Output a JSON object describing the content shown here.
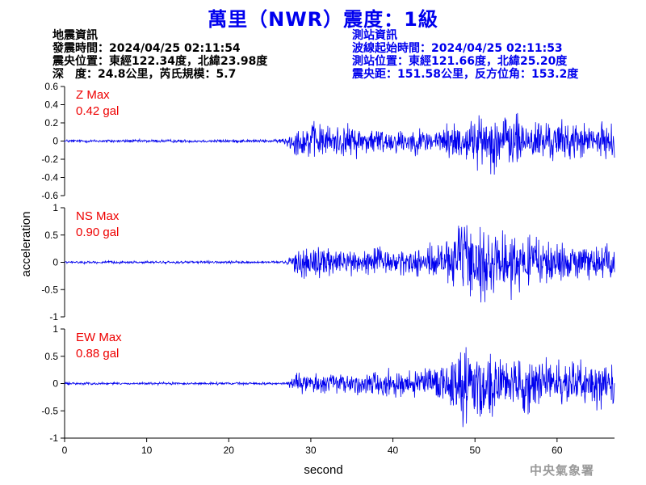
{
  "header": {
    "title": "萬里（NWR）震度：1級"
  },
  "quake_info": {
    "heading": "地震資訊",
    "origin_time": "發震時間：2024/04/25 02:11:54",
    "epicenter": "震央位置：東經122.34度，北緯23.98度",
    "depth_magnitude": "深　度：24.8公里，芮氏規模：5.7"
  },
  "station_info": {
    "heading": "測站資訊",
    "wave_start": "波線起始時間：2024/04/25 02:11:53",
    "location": "測站位置：東經121.66度，北緯25.20度",
    "distance_azimuth": "震央距：151.58公里，反方位角：153.2度"
  },
  "footer": {
    "agency": "中央氣象署"
  },
  "colors": {
    "trace": "#0000ee",
    "max_label": "#ee0000",
    "title": "#0000ee"
  },
  "chart_data": {
    "type": "line",
    "xlabel": "second",
    "ylabel": "acceleration",
    "xlim": [
      0,
      67
    ],
    "xticks": [
      "0",
      "10",
      "20",
      "30",
      "40",
      "50",
      "60"
    ],
    "series": [
      {
        "name": "Z",
        "max_label": "Z Max",
        "max_value": "0.42 gal",
        "ylim": [
          -0.6,
          0.6
        ],
        "yticks": [
          "0.6",
          "0.4",
          "0.2",
          "0",
          "-0.2",
          "-0.4",
          "-0.6"
        ],
        "envelope": [
          [
            0,
            0.015
          ],
          [
            26,
            0.015
          ],
          [
            27,
            0.05
          ],
          [
            28,
            0.12
          ],
          [
            30,
            0.18
          ],
          [
            32,
            0.16
          ],
          [
            35,
            0.15
          ],
          [
            40,
            0.12
          ],
          [
            45,
            0.12
          ],
          [
            48,
            0.2
          ],
          [
            50,
            0.22
          ],
          [
            53,
            0.3
          ],
          [
            55,
            0.25
          ],
          [
            58,
            0.2
          ],
          [
            62,
            0.18
          ],
          [
            67,
            0.15
          ]
        ]
      },
      {
        "name": "NS",
        "max_label": "NS Max",
        "max_value": "0.90 gal",
        "ylim": [
          -1,
          1
        ],
        "yticks": [
          "1",
          "0.5",
          "0",
          "-0.5",
          "-1"
        ],
        "envelope": [
          [
            0,
            0.02
          ],
          [
            27,
            0.02
          ],
          [
            28,
            0.2
          ],
          [
            29,
            0.3
          ],
          [
            31,
            0.25
          ],
          [
            35,
            0.2
          ],
          [
            38,
            0.25
          ],
          [
            40,
            0.2
          ],
          [
            44,
            0.22
          ],
          [
            46,
            0.35
          ],
          [
            48,
            0.55
          ],
          [
            49,
            0.75
          ],
          [
            50,
            0.55
          ],
          [
            52,
            0.45
          ],
          [
            54,
            0.45
          ],
          [
            56,
            0.4
          ],
          [
            60,
            0.35
          ],
          [
            63,
            0.3
          ],
          [
            67,
            0.3
          ]
        ]
      },
      {
        "name": "EW",
        "max_label": "EW Max",
        "max_value": "0.88 gal",
        "ylim": [
          -1,
          1
        ],
        "yticks": [
          "1",
          "0.5",
          "0",
          "-0.5",
          "-1"
        ],
        "envelope": [
          [
            0,
            0.02
          ],
          [
            27,
            0.02
          ],
          [
            28,
            0.12
          ],
          [
            30,
            0.15
          ],
          [
            33,
            0.17
          ],
          [
            36,
            0.2
          ],
          [
            40,
            0.2
          ],
          [
            44,
            0.2
          ],
          [
            46,
            0.35
          ],
          [
            48,
            0.55
          ],
          [
            49,
            0.75
          ],
          [
            50,
            0.55
          ],
          [
            53,
            0.45
          ],
          [
            56,
            0.45
          ],
          [
            60,
            0.35
          ],
          [
            64,
            0.35
          ],
          [
            67,
            0.3
          ]
        ]
      }
    ]
  }
}
